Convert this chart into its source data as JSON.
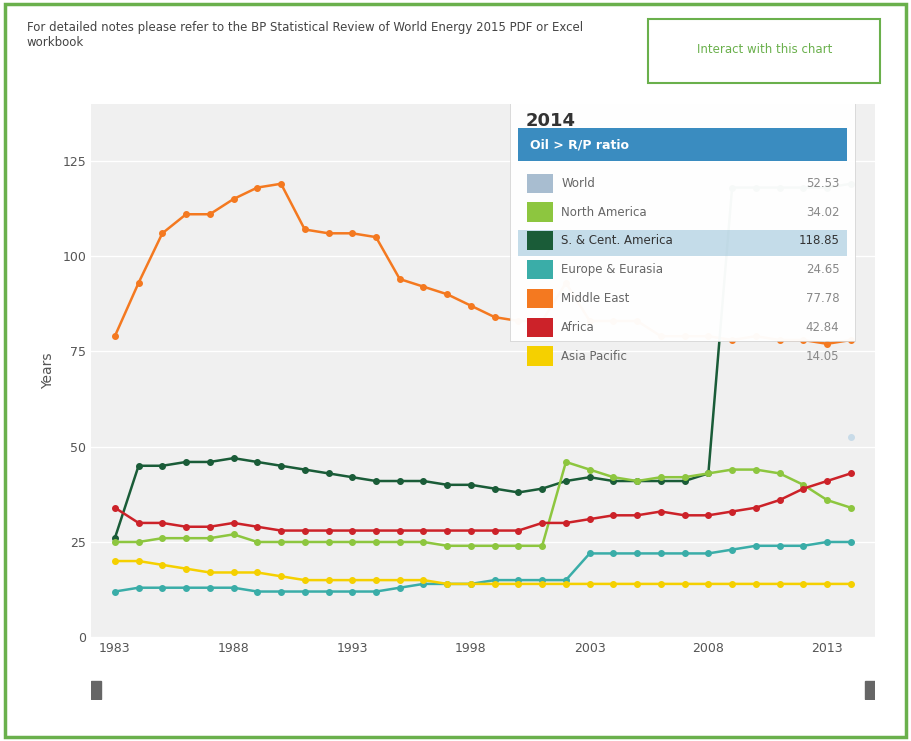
{
  "title_note": "For detailed notes please refer to the BP Statistical Review of World Energy 2015 PDF or Excel\nworkbook",
  "interact_btn": "Interact with this chart",
  "legend_year": "2014",
  "legend_title": "Oil > R/P ratio",
  "legend_entries": [
    {
      "label": "World",
      "color": "#a8bdd0",
      "value": "52.53",
      "highlighted": false
    },
    {
      "label": "North America",
      "color": "#8dc63f",
      "value": "34.02",
      "highlighted": false
    },
    {
      "label": "S. & Cent. America",
      "color": "#1a5c38",
      "value": "118.85",
      "highlighted": true
    },
    {
      "label": "Europe & Eurasia",
      "color": "#3aada8",
      "value": "24.65",
      "highlighted": false
    },
    {
      "label": "Middle East",
      "color": "#f47920",
      "value": "77.78",
      "highlighted": false
    },
    {
      "label": "Africa",
      "color": "#cc2229",
      "value": "42.84",
      "highlighted": false
    },
    {
      "label": "Asia Pacific",
      "color": "#f5d000",
      "value": "14.05",
      "highlighted": false
    }
  ],
  "ylabel": "Years",
  "ylim": [
    0,
    140
  ],
  "yticks": [
    0,
    25,
    50,
    75,
    100,
    125
  ],
  "years": [
    1983,
    1984,
    1985,
    1986,
    1987,
    1988,
    1989,
    1990,
    1991,
    1992,
    1993,
    1994,
    1995,
    1996,
    1997,
    1998,
    1999,
    2000,
    2001,
    2002,
    2003,
    2004,
    2005,
    2006,
    2007,
    2008,
    2009,
    2010,
    2011,
    2012,
    2013,
    2014
  ],
  "series": {
    "World": [
      null,
      null,
      null,
      null,
      null,
      null,
      null,
      null,
      null,
      null,
      null,
      null,
      null,
      null,
      null,
      null,
      null,
      null,
      null,
      null,
      null,
      null,
      null,
      null,
      null,
      null,
      null,
      null,
      null,
      null,
      null,
      52.53
    ],
    "North America": [
      25,
      25,
      26,
      26,
      26,
      27,
      25,
      25,
      25,
      25,
      25,
      25,
      25,
      25,
      24,
      24,
      24,
      24,
      24,
      46,
      44,
      42,
      41,
      42,
      42,
      43,
      44,
      44,
      43,
      40,
      36,
      34
    ],
    "S. & Cent. America": [
      26,
      45,
      45,
      46,
      46,
      47,
      46,
      45,
      44,
      43,
      42,
      41,
      41,
      41,
      40,
      40,
      39,
      38,
      39,
      41,
      42,
      41,
      41,
      41,
      41,
      43,
      118,
      118,
      118,
      118,
      118,
      119
    ],
    "Europe & Eurasia": [
      12,
      13,
      13,
      13,
      13,
      13,
      12,
      12,
      12,
      12,
      12,
      12,
      13,
      14,
      14,
      14,
      15,
      15,
      15,
      15,
      22,
      22,
      22,
      22,
      22,
      22,
      23,
      24,
      24,
      24,
      25,
      25
    ],
    "Middle East": [
      79,
      93,
      106,
      111,
      111,
      115,
      118,
      119,
      107,
      106,
      106,
      105,
      94,
      92,
      90,
      87,
      84,
      83,
      83,
      93,
      83,
      83,
      83,
      79,
      79,
      79,
      78,
      79,
      78,
      78,
      77,
      78
    ],
    "Africa": [
      34,
      30,
      30,
      29,
      29,
      30,
      29,
      28,
      28,
      28,
      28,
      28,
      28,
      28,
      28,
      28,
      28,
      28,
      30,
      30,
      31,
      32,
      32,
      33,
      32,
      32,
      33,
      34,
      36,
      39,
      41,
      43
    ],
    "Asia Pacific": [
      20,
      20,
      19,
      18,
      17,
      17,
      17,
      16,
      15,
      15,
      15,
      15,
      15,
      15,
      14,
      14,
      14,
      14,
      14,
      14,
      14,
      14,
      14,
      14,
      14,
      14,
      14,
      14,
      14,
      14,
      14,
      14
    ]
  },
  "series_colors": {
    "World": "#c8dbe8",
    "North America": "#8dc63f",
    "S. & Cent. America": "#1a5c38",
    "Europe & Eurasia": "#3aada8",
    "Middle East": "#f47920",
    "Africa": "#cc2229",
    "Asia Pacific": "#f5d000"
  },
  "bg_chart": "#f0f0f0",
  "border_color": "#6ab04c",
  "xtick_labels": [
    "1983",
    "1988",
    "1993",
    "1998",
    "2003",
    "2008",
    "2013"
  ],
  "xtick_positions": [
    1983,
    1988,
    1993,
    1998,
    2003,
    2008,
    2013
  ]
}
